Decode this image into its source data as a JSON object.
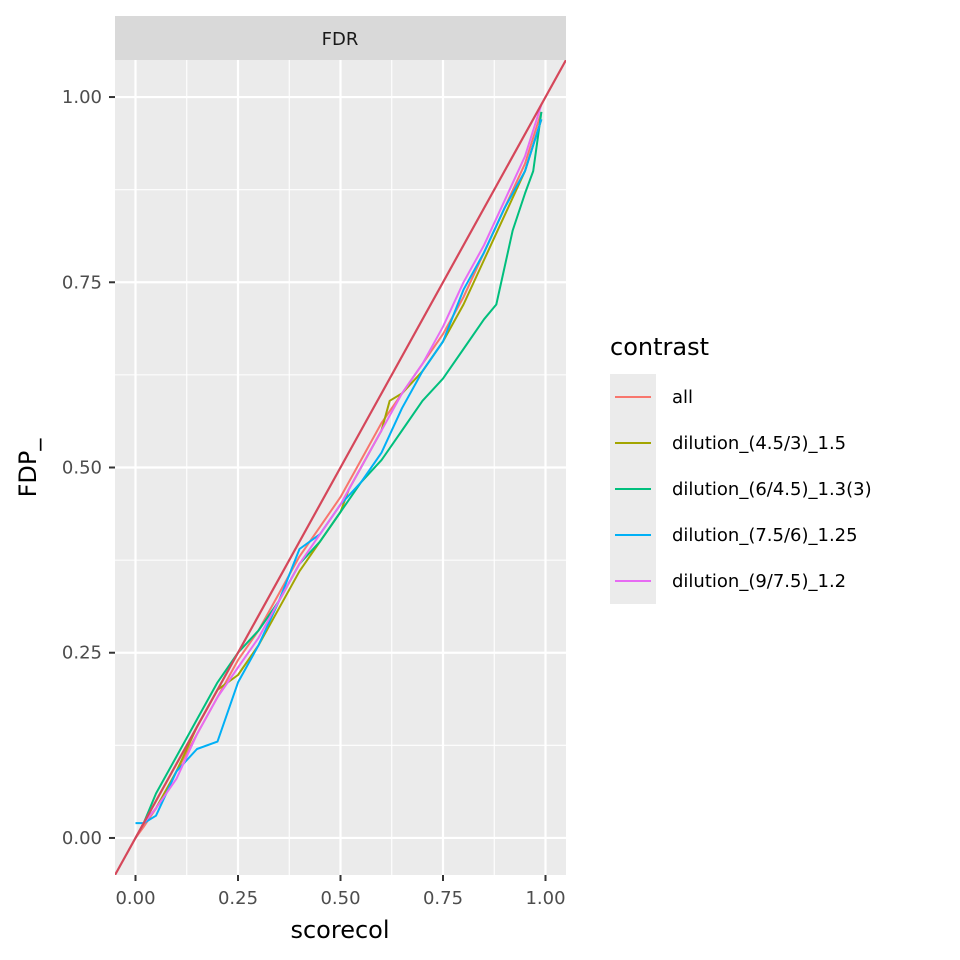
{
  "chart_data": {
    "type": "line",
    "facet": "FDR",
    "xlabel": "scorecol",
    "ylabel": "FDP_",
    "xlim": [
      -0.05,
      1.05
    ],
    "ylim": [
      -0.05,
      1.05
    ],
    "x_ticks": [
      0,
      0.25,
      0.5,
      0.75,
      1
    ],
    "x_tick_labels": [
      "0.00",
      "0.25",
      "0.50",
      "0.75",
      "1.00"
    ],
    "y_ticks": [
      0,
      0.25,
      0.5,
      0.75,
      1
    ],
    "y_tick_labels": [
      "0.00",
      "0.25",
      "0.50",
      "0.75",
      "1.00"
    ],
    "grid": true,
    "legend_position": "right",
    "legend_title": "contrast",
    "reference_line": {
      "slope": 1,
      "intercept": 0,
      "color": "#D5475A"
    },
    "series": [
      {
        "name": "all",
        "color": "#F8766D",
        "points": [
          [
            0,
            0
          ],
          [
            0.02,
            0.015
          ],
          [
            0.05,
            0.04
          ],
          [
            0.1,
            0.09
          ],
          [
            0.15,
            0.14
          ],
          [
            0.2,
            0.19
          ],
          [
            0.25,
            0.24
          ],
          [
            0.3,
            0.28
          ],
          [
            0.35,
            0.33
          ],
          [
            0.4,
            0.38
          ],
          [
            0.45,
            0.42
          ],
          [
            0.5,
            0.46
          ],
          [
            0.55,
            0.51
          ],
          [
            0.6,
            0.56
          ],
          [
            0.65,
            0.6
          ],
          [
            0.7,
            0.64
          ],
          [
            0.75,
            0.68
          ],
          [
            0.8,
            0.73
          ],
          [
            0.85,
            0.79
          ],
          [
            0.9,
            0.85
          ],
          [
            0.95,
            0.91
          ],
          [
            0.99,
            0.98
          ]
        ]
      },
      {
        "name": "dilution_(4.5/3)_1.5",
        "color": "#A3A500",
        "points": [
          [
            0,
            0
          ],
          [
            0.02,
            0.02
          ],
          [
            0.05,
            0.04
          ],
          [
            0.1,
            0.09
          ],
          [
            0.15,
            0.15
          ],
          [
            0.2,
            0.2
          ],
          [
            0.25,
            0.22
          ],
          [
            0.3,
            0.26
          ],
          [
            0.35,
            0.31
          ],
          [
            0.4,
            0.36
          ],
          [
            0.45,
            0.4
          ],
          [
            0.5,
            0.44
          ],
          [
            0.52,
            0.47
          ],
          [
            0.55,
            0.5
          ],
          [
            0.6,
            0.55
          ],
          [
            0.62,
            0.59
          ],
          [
            0.65,
            0.6
          ],
          [
            0.7,
            0.63
          ],
          [
            0.75,
            0.67
          ],
          [
            0.8,
            0.72
          ],
          [
            0.85,
            0.78
          ],
          [
            0.9,
            0.84
          ],
          [
            0.95,
            0.9
          ],
          [
            0.99,
            0.97
          ]
        ]
      },
      {
        "name": "dilution_(6/4.5)_1.3(3)",
        "color": "#00BF7D",
        "points": [
          [
            0,
            0
          ],
          [
            0.02,
            0.02
          ],
          [
            0.05,
            0.06
          ],
          [
            0.1,
            0.11
          ],
          [
            0.15,
            0.16
          ],
          [
            0.2,
            0.21
          ],
          [
            0.25,
            0.25
          ],
          [
            0.3,
            0.28
          ],
          [
            0.35,
            0.32
          ],
          [
            0.4,
            0.37
          ],
          [
            0.45,
            0.4
          ],
          [
            0.5,
            0.44
          ],
          [
            0.55,
            0.48
          ],
          [
            0.6,
            0.51
          ],
          [
            0.65,
            0.55
          ],
          [
            0.7,
            0.59
          ],
          [
            0.75,
            0.62
          ],
          [
            0.8,
            0.66
          ],
          [
            0.85,
            0.7
          ],
          [
            0.88,
            0.72
          ],
          [
            0.9,
            0.77
          ],
          [
            0.92,
            0.82
          ],
          [
            0.95,
            0.87
          ],
          [
            0.97,
            0.9
          ],
          [
            0.99,
            0.98
          ]
        ]
      },
      {
        "name": "dilution_(7.5/6)_1.25",
        "color": "#00B0F6",
        "points": [
          [
            0,
            0.02
          ],
          [
            0.02,
            0.02
          ],
          [
            0.05,
            0.03
          ],
          [
            0.1,
            0.09
          ],
          [
            0.15,
            0.12
          ],
          [
            0.2,
            0.13
          ],
          [
            0.25,
            0.21
          ],
          [
            0.3,
            0.26
          ],
          [
            0.35,
            0.32
          ],
          [
            0.4,
            0.39
          ],
          [
            0.45,
            0.41
          ],
          [
            0.5,
            0.45
          ],
          [
            0.55,
            0.48
          ],
          [
            0.6,
            0.52
          ],
          [
            0.65,
            0.58
          ],
          [
            0.7,
            0.63
          ],
          [
            0.75,
            0.67
          ],
          [
            0.8,
            0.74
          ],
          [
            0.85,
            0.79
          ],
          [
            0.9,
            0.85
          ],
          [
            0.95,
            0.9
          ],
          [
            0.99,
            0.97
          ]
        ]
      },
      {
        "name": "dilution_(9/7.5)_1.2",
        "color": "#E76BF3",
        "points": [
          [
            0,
            0
          ],
          [
            0.02,
            0.02
          ],
          [
            0.05,
            0.04
          ],
          [
            0.1,
            0.08
          ],
          [
            0.15,
            0.14
          ],
          [
            0.2,
            0.19
          ],
          [
            0.25,
            0.23
          ],
          [
            0.3,
            0.27
          ],
          [
            0.35,
            0.32
          ],
          [
            0.4,
            0.37
          ],
          [
            0.45,
            0.41
          ],
          [
            0.5,
            0.45
          ],
          [
            0.55,
            0.5
          ],
          [
            0.6,
            0.55
          ],
          [
            0.65,
            0.6
          ],
          [
            0.7,
            0.64
          ],
          [
            0.75,
            0.69
          ],
          [
            0.8,
            0.75
          ],
          [
            0.85,
            0.8
          ],
          [
            0.9,
            0.86
          ],
          [
            0.95,
            0.92
          ],
          [
            0.99,
            0.99
          ]
        ]
      }
    ]
  }
}
